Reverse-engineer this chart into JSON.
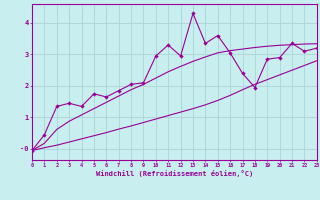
{
  "xlabel": "Windchill (Refroidissement éolien,°C)",
  "background_color": "#c8eef0",
  "grid_color": "#b0d8d8",
  "line_color": "#990099",
  "x": [
    0,
    1,
    2,
    3,
    4,
    5,
    6,
    7,
    8,
    9,
    10,
    11,
    12,
    13,
    14,
    15,
    16,
    17,
    18,
    19,
    20,
    21,
    22,
    23
  ],
  "y_main": [
    -0.05,
    0.45,
    1.35,
    1.45,
    1.35,
    1.75,
    1.65,
    1.85,
    2.05,
    2.1,
    2.95,
    3.3,
    2.95,
    4.3,
    3.35,
    3.6,
    3.05,
    2.4,
    1.95,
    2.85,
    2.9,
    3.35,
    3.1,
    3.2
  ],
  "y_upper": [
    -0.05,
    0.18,
    0.62,
    0.88,
    1.08,
    1.28,
    1.48,
    1.68,
    1.88,
    2.05,
    2.25,
    2.45,
    2.62,
    2.78,
    2.92,
    3.05,
    3.12,
    3.17,
    3.22,
    3.26,
    3.29,
    3.31,
    3.33,
    3.34
  ],
  "y_lower": [
    -0.05,
    0.04,
    0.12,
    0.22,
    0.32,
    0.42,
    0.52,
    0.63,
    0.73,
    0.84,
    0.95,
    1.06,
    1.17,
    1.28,
    1.4,
    1.54,
    1.7,
    1.88,
    2.05,
    2.2,
    2.35,
    2.5,
    2.65,
    2.8
  ],
  "xlim": [
    0,
    23
  ],
  "ylim": [
    -0.35,
    4.6
  ],
  "yticks": [
    0,
    1,
    2,
    3,
    4
  ],
  "ytick_labels": [
    "-0",
    "1",
    "2",
    "3",
    "4"
  ],
  "xticks": [
    0,
    1,
    2,
    3,
    4,
    5,
    6,
    7,
    8,
    9,
    10,
    11,
    12,
    13,
    14,
    15,
    16,
    17,
    18,
    19,
    20,
    21,
    22,
    23
  ]
}
